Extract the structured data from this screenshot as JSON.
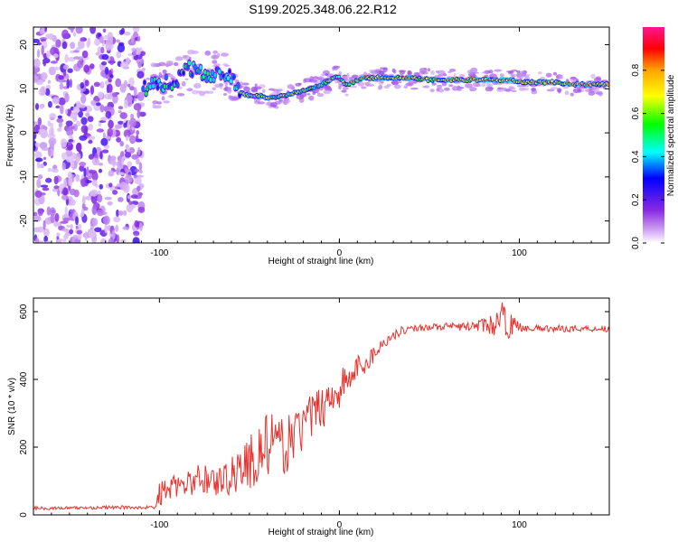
{
  "title": "S199.2025.348.06.22.R12",
  "chart_data": [
    {
      "type": "heatmap",
      "name": "spectrogram",
      "xlabel": "Height of straight line (km)",
      "ylabel": "Frequency (Hz)",
      "xlim": [
        -170,
        150
      ],
      "ylim": [
        -25,
        24
      ],
      "xticks": [
        -100,
        0,
        100
      ],
      "yticks": [
        -20,
        -10,
        0,
        10,
        20
      ],
      "noise_region_x": [
        -170,
        -109
      ],
      "ridge": {
        "x": [
          -109,
          -100,
          -90,
          -85,
          -80,
          -75,
          -70,
          -65,
          -60,
          -56,
          -54,
          -50,
          -45,
          -40,
          -35,
          -30,
          -25,
          -20,
          -15,
          -10,
          -5,
          -2,
          0,
          3,
          5,
          10,
          15,
          20,
          30,
          40,
          50,
          60,
          70,
          80,
          85,
          88,
          90,
          95,
          100,
          110,
          120,
          130,
          140,
          150
        ],
        "y": [
          10,
          11,
          12,
          15,
          14,
          13,
          13.5,
          13,
          12.5,
          10,
          9,
          8.5,
          8.5,
          8,
          8,
          8.5,
          9,
          9.5,
          10,
          11,
          12,
          13,
          12.5,
          11,
          11,
          12,
          12.5,
          12.5,
          12.5,
          12.5,
          12,
          12,
          12,
          12,
          12,
          12,
          12,
          12,
          11.5,
          11.5,
          11.5,
          11,
          11,
          11
        ]
      },
      "colorbar": {
        "label": "Normalized spectral amplitude",
        "range": [
          0,
          1
        ],
        "ticks": [
          "0.0",
          "0.2",
          "0.4",
          "0.6",
          "0.8"
        ],
        "tick_values": [
          0,
          0.2,
          0.4,
          0.6,
          0.8
        ],
        "colors": [
          "#ffffff",
          "#d6b2f5",
          "#8a2be2",
          "#0000ff",
          "#00ffff",
          "#00ff00",
          "#ffff00",
          "#ffa500",
          "#ff0000",
          "#ff1493"
        ]
      }
    },
    {
      "type": "line",
      "name": "snr",
      "xlabel": "Height of straight line (km)",
      "ylabel": "SNR (10 * v/v)",
      "xlim": [
        -170,
        150
      ],
      "ylim": [
        0,
        640
      ],
      "xticks": [
        -100,
        0,
        100
      ],
      "yticks": [
        0,
        200,
        400,
        600
      ],
      "color": "#e8312c",
      "x": [
        -170,
        -150,
        -130,
        -110,
        -102,
        -100,
        -95,
        -90,
        -85,
        -80,
        -75,
        -70,
        -65,
        -60,
        -55,
        -50,
        -45,
        -40,
        -35,
        -30,
        -25,
        -20,
        -15,
        -10,
        -5,
        0,
        5,
        10,
        15,
        20,
        25,
        30,
        35,
        40,
        50,
        60,
        70,
        80,
        85,
        90,
        95,
        100,
        110,
        120,
        130,
        140,
        150
      ],
      "y": [
        20,
        20,
        22,
        22,
        22,
        60,
        80,
        85,
        90,
        100,
        110,
        100,
        100,
        120,
        140,
        150,
        180,
        210,
        200,
        200,
        240,
        260,
        290,
        320,
        350,
        370,
        400,
        430,
        450,
        480,
        510,
        530,
        545,
        550,
        555,
        555,
        555,
        560,
        560,
        580,
        560,
        555,
        550,
        550,
        550,
        550,
        550
      ],
      "amp": [
        5,
        5,
        5,
        5,
        5,
        40,
        35,
        30,
        35,
        45,
        50,
        50,
        45,
        60,
        80,
        90,
        100,
        95,
        90,
        80,
        80,
        75,
        70,
        70,
        65,
        60,
        55,
        45,
        35,
        25,
        15,
        15,
        12,
        10,
        10,
        12,
        12,
        20,
        30,
        50,
        40,
        12,
        10,
        10,
        10,
        10,
        10
      ]
    }
  ]
}
